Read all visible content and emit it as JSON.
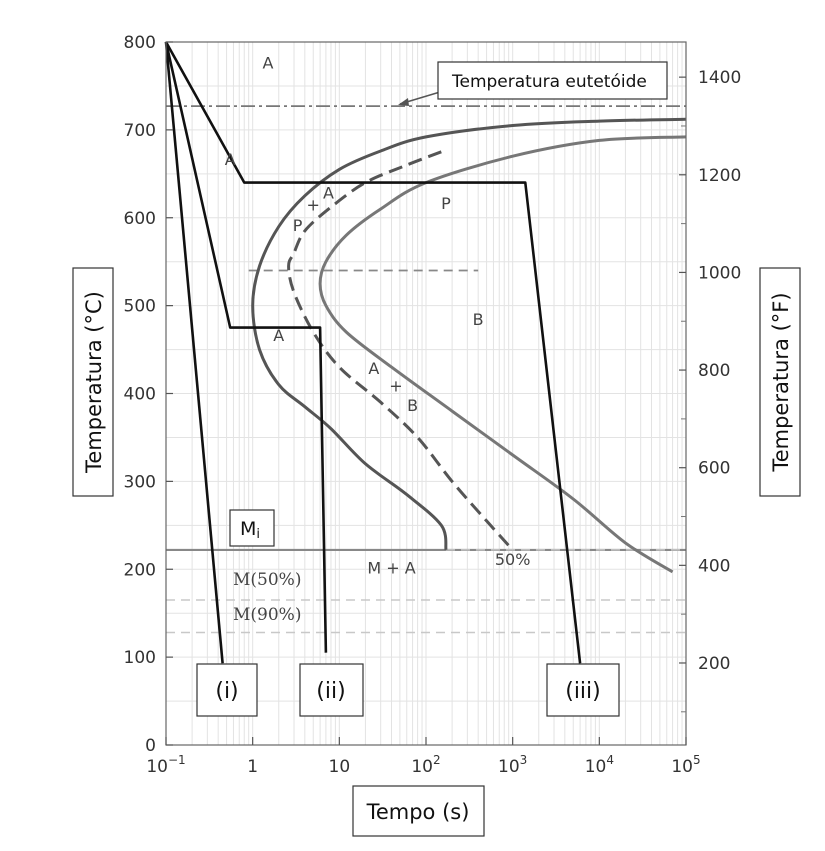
{
  "chart_data": {
    "type": "line",
    "xlabel": "Tempo (s)",
    "ylabel_left": "Temperatura (°C)",
    "ylabel_right": "Temperatura (°F)",
    "xscale": "log",
    "xlim": [
      0.1,
      100000
    ],
    "ylim_left": [
      0,
      800
    ],
    "ylim_right": [
      32,
      1472
    ],
    "grid": true,
    "x_ticks": [
      {
        "value": 0.1,
        "base": "10",
        "exp": "−1"
      },
      {
        "value": 1,
        "base": "1",
        "exp": ""
      },
      {
        "value": 10,
        "base": "10",
        "exp": ""
      },
      {
        "value": 100,
        "base": "10",
        "exp": "2"
      },
      {
        "value": 1000,
        "base": "10",
        "exp": "3"
      },
      {
        "value": 10000,
        "base": "10",
        "exp": "4"
      },
      {
        "value": 100000,
        "base": "10",
        "exp": "5"
      }
    ],
    "y_ticks_left": [
      {
        "value": 0,
        "label": "0"
      },
      {
        "value": 100,
        "label": "100"
      },
      {
        "value": 200,
        "label": "200"
      },
      {
        "value": 300,
        "label": "300"
      },
      {
        "value": 400,
        "label": "400"
      },
      {
        "value": 500,
        "label": "500"
      },
      {
        "value": 600,
        "label": "600"
      },
      {
        "value": 700,
        "label": "700"
      },
      {
        "value": 800,
        "label": "800"
      }
    ],
    "y_ticks_right": [
      {
        "value": 200,
        "label": "200"
      },
      {
        "value": 400,
        "label": "400"
      },
      {
        "value": 600,
        "label": "600"
      },
      {
        "value": 800,
        "label": "800"
      },
      {
        "value": 1000,
        "label": "1000"
      },
      {
        "value": 1200,
        "label": "1200"
      },
      {
        "value": 1400,
        "label": "1400"
      }
    ],
    "reference_lines": [
      {
        "name": "Temperatura eutetóide",
        "y": 727,
        "style": "dashdot"
      },
      {
        "name": "Mi",
        "y": 222,
        "style": "solid"
      },
      {
        "name": "M(50%)",
        "y": 165,
        "style": "dashed"
      },
      {
        "name": "M(90%)",
        "y": 128,
        "style": "dashed"
      },
      {
        "y": 540,
        "style": "dashed",
        "x_start": 0.9,
        "x_end": 400
      }
    ],
    "series": [
      {
        "id": "begin-curve",
        "style": "solid",
        "color": "#555555",
        "points": [
          [
            100000,
            712
          ],
          [
            10000,
            710
          ],
          [
            1000,
            705
          ],
          [
            100,
            692
          ],
          [
            30,
            676
          ],
          [
            10,
            655
          ],
          [
            4,
            625
          ],
          [
            2,
            590
          ],
          [
            1.2,
            545
          ],
          [
            1,
            500
          ],
          [
            1.2,
            450
          ],
          [
            2,
            410
          ],
          [
            4,
            385
          ],
          [
            8,
            360
          ],
          [
            20,
            320
          ],
          [
            60,
            285
          ],
          [
            150,
            250
          ],
          [
            170,
            222
          ]
        ]
      },
      {
        "id": "fifty-percent-curve",
        "style": "dashed",
        "color": "#555555",
        "points": [
          [
            150,
            675
          ],
          [
            60,
            660
          ],
          [
            20,
            640
          ],
          [
            8,
            612
          ],
          [
            4,
            585
          ],
          [
            3,
            560
          ],
          [
            2.6,
            545
          ],
          [
            3,
            515
          ],
          [
            5,
            470
          ],
          [
            10,
            430
          ],
          [
            30,
            390
          ],
          [
            80,
            350
          ],
          [
            200,
            300
          ],
          [
            500,
            255
          ],
          [
            1000,
            222
          ]
        ]
      },
      {
        "id": "end-curve",
        "style": "solid",
        "color": "#777777",
        "points": [
          [
            100000,
            692
          ],
          [
            10000,
            688
          ],
          [
            1000,
            670
          ],
          [
            100,
            640
          ],
          [
            30,
            610
          ],
          [
            12,
            580
          ],
          [
            7,
            550
          ],
          [
            6,
            525
          ],
          [
            7,
            500
          ],
          [
            12,
            470
          ],
          [
            40,
            430
          ],
          [
            200,
            380
          ],
          [
            1000,
            330
          ],
          [
            5000,
            280
          ],
          [
            20000,
            230
          ],
          [
            70000,
            197
          ]
        ]
      },
      {
        "id": "path-i",
        "style": "solid",
        "color": "#111111",
        "points": [
          [
            0.1,
            800
          ],
          [
            0.45,
            93
          ]
        ]
      },
      {
        "id": "path-ii",
        "style": "solid",
        "color": "#111111",
        "points": [
          [
            0.1,
            800
          ],
          [
            0.55,
            475
          ],
          [
            6,
            475
          ],
          [
            7,
            105
          ]
        ]
      },
      {
        "id": "path-iii",
        "style": "solid",
        "color": "#111111",
        "points": [
          [
            0.1,
            800
          ],
          [
            0.8,
            640
          ],
          [
            1400,
            640
          ],
          [
            6000,
            93
          ]
        ]
      }
    ],
    "annotations": [
      {
        "text": "A",
        "x": 1.5,
        "y": 770
      },
      {
        "text": "A",
        "x": 0.55,
        "y": 660
      },
      {
        "text": "P",
        "x": 170,
        "y": 610
      },
      {
        "text": "B",
        "x": 400,
        "y": 478
      },
      {
        "text": "A",
        "x": 2,
        "y": 460
      },
      {
        "text": "P",
        "x": 3.3,
        "y": 585
      },
      {
        "text": "+",
        "x": 5,
        "y": 608
      },
      {
        "text": "A",
        "x": 7.5,
        "y": 622
      },
      {
        "text": "A",
        "x": 25,
        "y": 422
      },
      {
        "text": "+",
        "x": 45,
        "y": 402
      },
      {
        "text": "B",
        "x": 70,
        "y": 380
      },
      {
        "text": "M + A",
        "x": 40,
        "y": 195
      },
      {
        "text": "50%",
        "x": 1000,
        "y": 205
      }
    ],
    "box_labels": {
      "eutectoid": "Temperatura eutetóide",
      "mi_base": "M",
      "mi_sub": "i",
      "m50": "M(50%)",
      "m90": "M(90%)",
      "path_i": "(i)",
      "path_ii": "(ii)",
      "path_iii": "(iii)"
    },
    "colors": {
      "transformation_curves": "#555555",
      "cooling_paths": "#111111",
      "grid": "#e3e3e3",
      "reference_dashed": "#c8c8c8"
    }
  }
}
